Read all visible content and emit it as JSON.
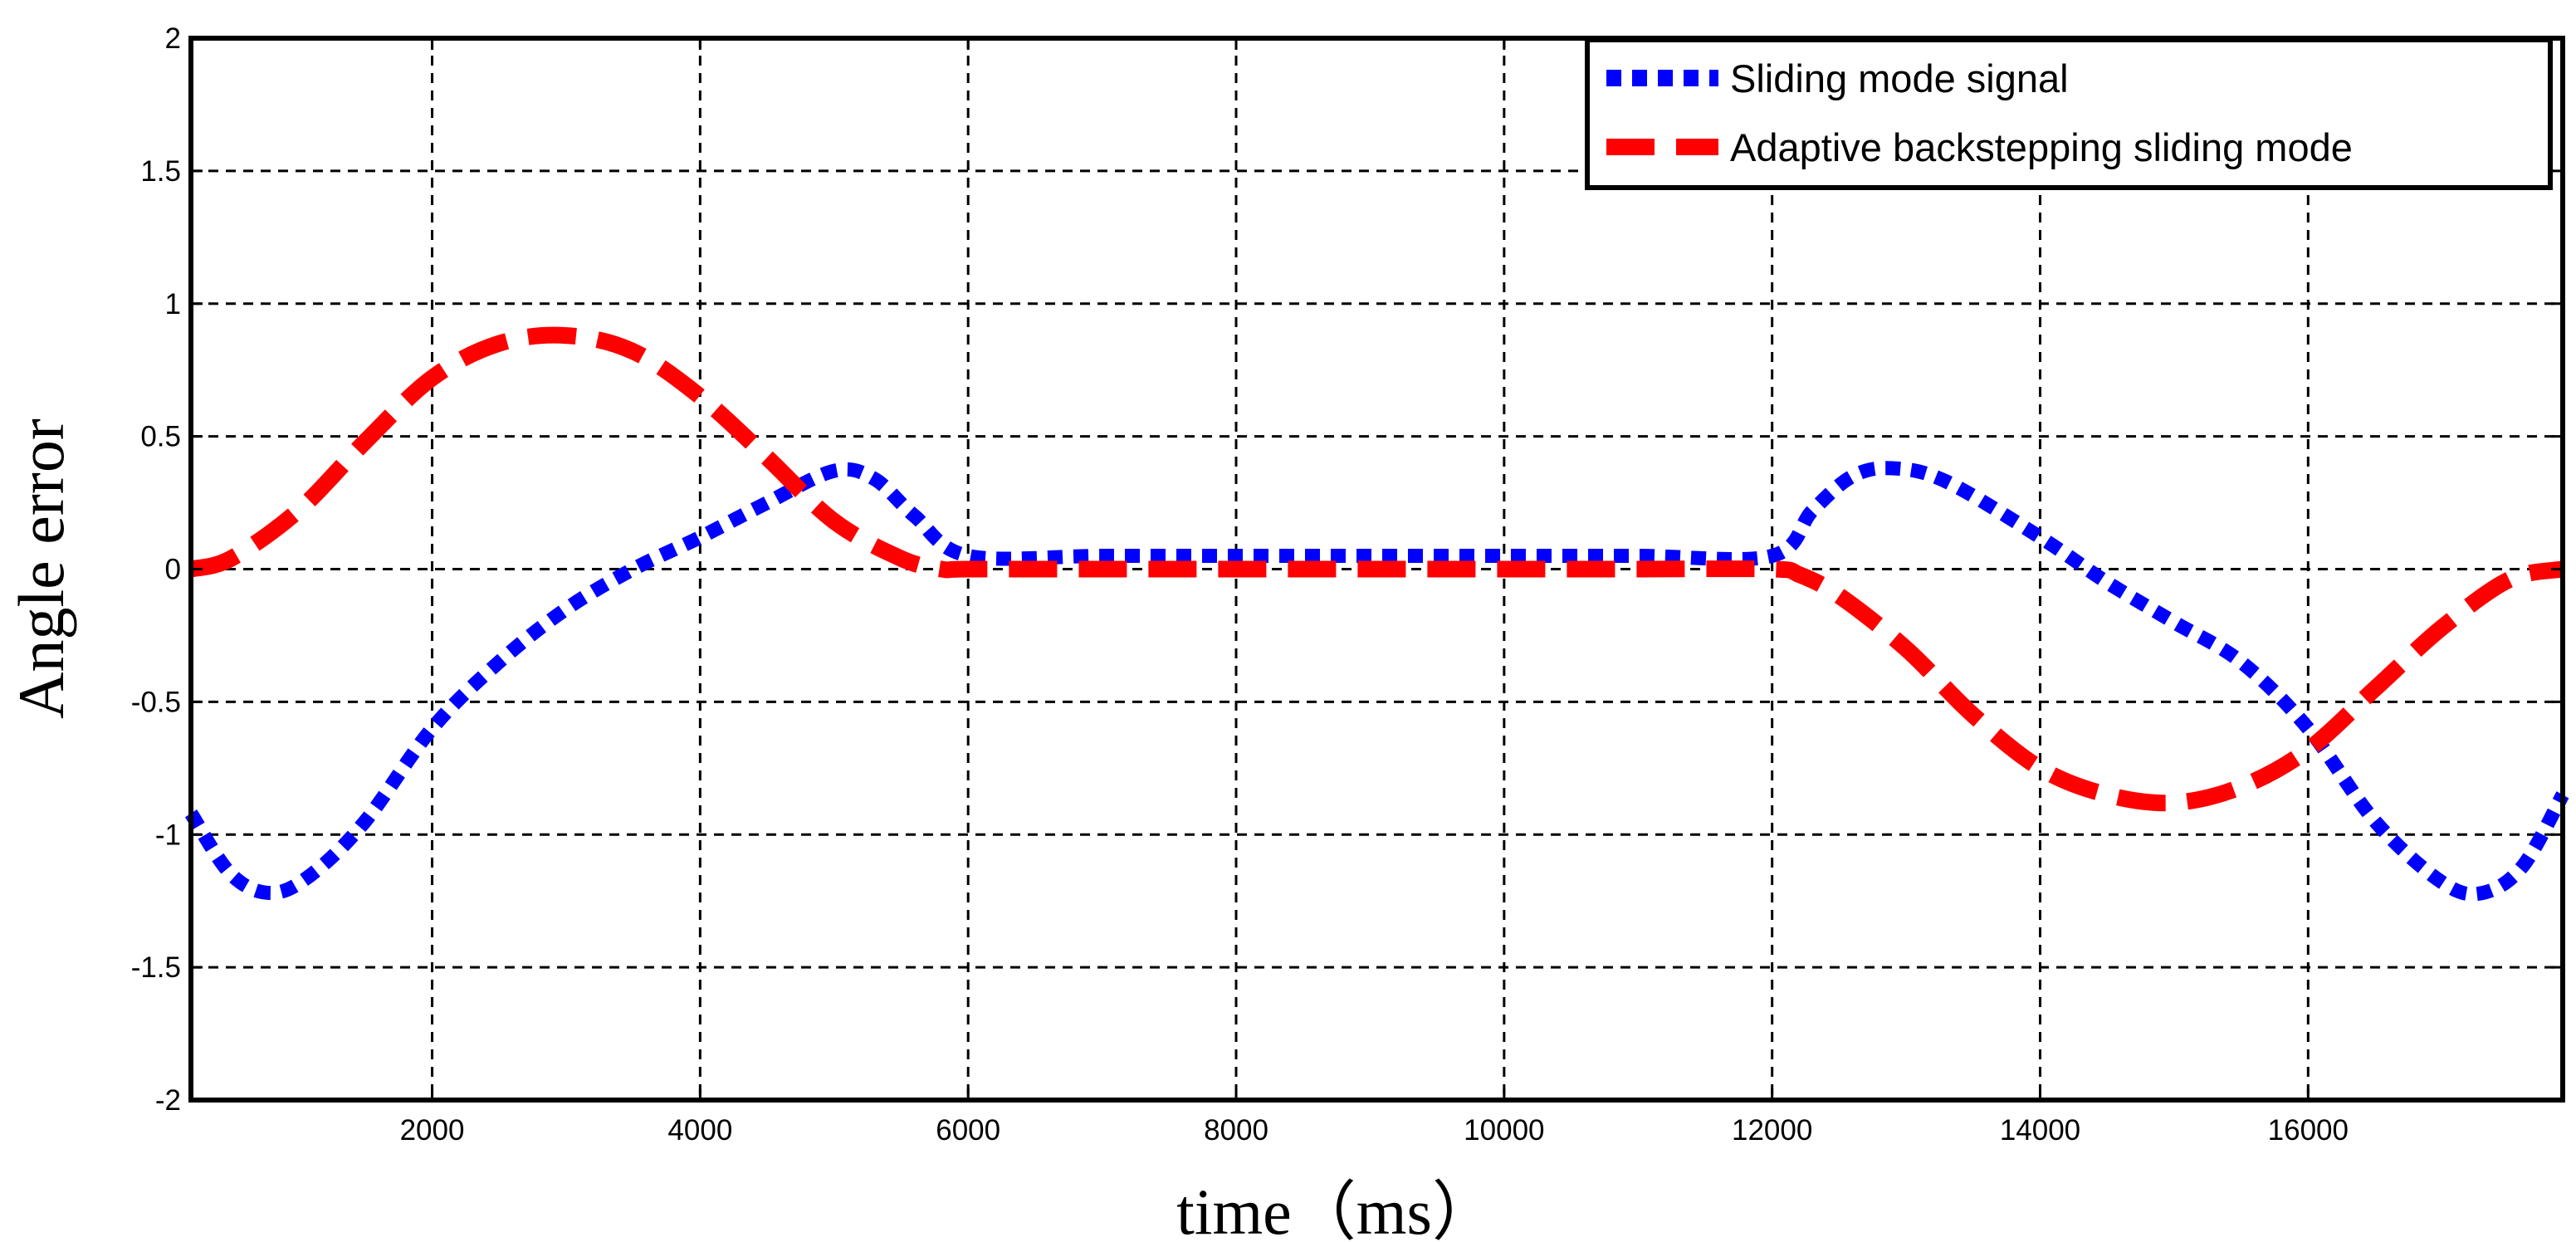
{
  "chart_data": {
    "type": "line",
    "title": "",
    "xlabel": "time（ms）",
    "ylabel": "Angle error",
    "xlim": [
      200,
      17900
    ],
    "ylim": [
      -2,
      2
    ],
    "x_ticks": [
      2000,
      4000,
      6000,
      8000,
      10000,
      12000,
      14000,
      16000
    ],
    "x_tick_labels": [
      "2000",
      "4000",
      "6000",
      "8000",
      "10000",
      "12000",
      "14000",
      "16000"
    ],
    "y_ticks": [
      2,
      1.5,
      1,
      0.5,
      0,
      -0.5,
      -1,
      -1.5,
      -2
    ],
    "y_tick_labels": [
      "2",
      "1.5",
      "1",
      "0.5",
      "0",
      "-0.5",
      "-1",
      "-1.5",
      "-2"
    ],
    "grid": true,
    "legend_position": "top-right",
    "series": [
      {
        "name": "Sliding mode signal",
        "color": "#0000ff",
        "style": "dotted",
        "x": [
          200,
          500,
          800,
          1100,
          1500,
          2000,
          2500,
          3000,
          3500,
          4000,
          4500,
          5000,
          5300,
          5600,
          6000,
          7000,
          8000,
          9000,
          10000,
          11000,
          12000,
          12300,
          12600,
          12900,
          13300,
          14000,
          14500,
          15000,
          15500,
          16000,
          16500,
          17000,
          17300,
          17600,
          17900
        ],
        "values": [
          -0.92,
          -1.15,
          -1.22,
          -1.15,
          -0.95,
          -0.6,
          -0.35,
          -0.15,
          0.0,
          0.12,
          0.25,
          0.37,
          0.34,
          0.2,
          0.05,
          0.05,
          0.05,
          0.05,
          0.05,
          0.05,
          0.05,
          0.22,
          0.35,
          0.38,
          0.33,
          0.12,
          -0.05,
          -0.2,
          -0.35,
          -0.6,
          -0.95,
          -1.18,
          -1.22,
          -1.12,
          -0.85
        ]
      },
      {
        "name": "Adaptive backstepping sliding mode",
        "color": "#ff0000",
        "style": "dashed",
        "x": [
          200,
          500,
          1000,
          1500,
          2000,
          2500,
          3000,
          3500,
          4000,
          4500,
          5000,
          5500,
          5800,
          6000,
          7000,
          8000,
          9000,
          10000,
          11000,
          12000,
          12200,
          12500,
          13000,
          13500,
          14000,
          14500,
          15000,
          15500,
          16000,
          16500,
          17000,
          17500,
          17900
        ],
        "values": [
          0.0,
          0.04,
          0.22,
          0.48,
          0.72,
          0.85,
          0.88,
          0.82,
          0.65,
          0.42,
          0.18,
          0.04,
          0.0,
          0.0,
          0.0,
          0.0,
          0.0,
          0.0,
          0.0,
          0.0,
          -0.02,
          -0.1,
          -0.3,
          -0.55,
          -0.75,
          -0.85,
          -0.88,
          -0.82,
          -0.68,
          -0.45,
          -0.22,
          -0.04,
          0.0
        ]
      }
    ]
  }
}
